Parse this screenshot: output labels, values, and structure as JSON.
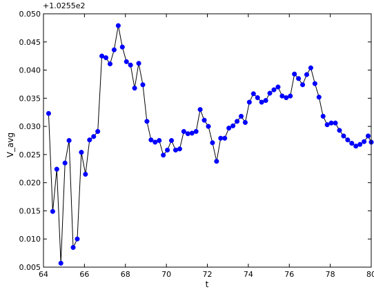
{
  "chart_data": {
    "type": "line",
    "title": "",
    "xlabel": "t",
    "ylabel": "V_avg",
    "offset_text": "+1.0255e2",
    "xlim": [
      64,
      80
    ],
    "ylim": [
      0.005,
      0.05
    ],
    "xticks": [
      64,
      66,
      68,
      70,
      72,
      74,
      76,
      78,
      80
    ],
    "xtick_labels": [
      "64",
      "66",
      "68",
      "70",
      "72",
      "74",
      "76",
      "78",
      "80"
    ],
    "yticks": [
      0.005,
      0.01,
      0.015,
      0.02,
      0.025,
      0.03,
      0.035,
      0.04,
      0.045,
      0.05
    ],
    "ytick_labels": [
      "0.005",
      "0.010",
      "0.015",
      "0.020",
      "0.025",
      "0.030",
      "0.035",
      "0.040",
      "0.045",
      "0.050"
    ],
    "grid": false,
    "legend": "none",
    "series": [
      {
        "color": "#0000ff",
        "line_color": "#000000",
        "marker": "circle",
        "x": [
          64.25,
          64.45,
          64.65,
          64.85,
          65.05,
          65.25,
          65.45,
          65.65,
          65.85,
          66.05,
          66.25,
          66.45,
          66.65,
          66.85,
          67.05,
          67.25,
          67.45,
          67.65,
          67.85,
          68.05,
          68.25,
          68.45,
          68.65,
          68.85,
          69.05,
          69.25,
          69.45,
          69.65,
          69.85,
          70.05,
          70.25,
          70.45,
          70.65,
          70.85,
          71.05,
          71.25,
          71.45,
          71.65,
          71.85,
          72.05,
          72.25,
          72.45,
          72.65,
          72.85,
          73.05,
          73.25,
          73.45,
          73.65,
          73.85,
          74.05,
          74.25,
          74.45,
          74.65,
          74.85,
          75.05,
          75.25,
          75.45,
          75.65,
          75.85,
          76.05,
          76.25,
          76.45,
          76.65,
          76.85,
          77.05,
          77.25,
          77.45,
          77.65,
          77.85,
          78.05,
          78.25,
          78.45,
          78.65,
          78.85,
          79.05,
          79.25,
          79.45,
          79.65,
          79.85,
          80.0
        ],
        "y": [
          0.0323,
          0.0149,
          0.0224,
          0.0057,
          0.0235,
          0.0275,
          0.0085,
          0.01,
          0.0254,
          0.0215,
          0.0276,
          0.0282,
          0.0291,
          0.0425,
          0.0422,
          0.0411,
          0.0436,
          0.0479,
          0.0441,
          0.0415,
          0.0409,
          0.0368,
          0.0412,
          0.0374,
          0.0309,
          0.0276,
          0.0272,
          0.0275,
          0.0249,
          0.0258,
          0.0275,
          0.0258,
          0.026,
          0.0291,
          0.0287,
          0.0288,
          0.0291,
          0.033,
          0.0311,
          0.03,
          0.0271,
          0.0238,
          0.0279,
          0.0279,
          0.0297,
          0.0301,
          0.0309,
          0.0318,
          0.0307,
          0.0343,
          0.0358,
          0.0351,
          0.0343,
          0.0346,
          0.0359,
          0.0365,
          0.037,
          0.0354,
          0.0351,
          0.0354,
          0.0393,
          0.0385,
          0.0374,
          0.0392,
          0.0404,
          0.0376,
          0.0352,
          0.0318,
          0.0303,
          0.0306,
          0.0306,
          0.0293,
          0.0283,
          0.0276,
          0.027,
          0.0265,
          0.0268,
          0.0273,
          0.0283,
          0.0272
        ]
      }
    ]
  }
}
